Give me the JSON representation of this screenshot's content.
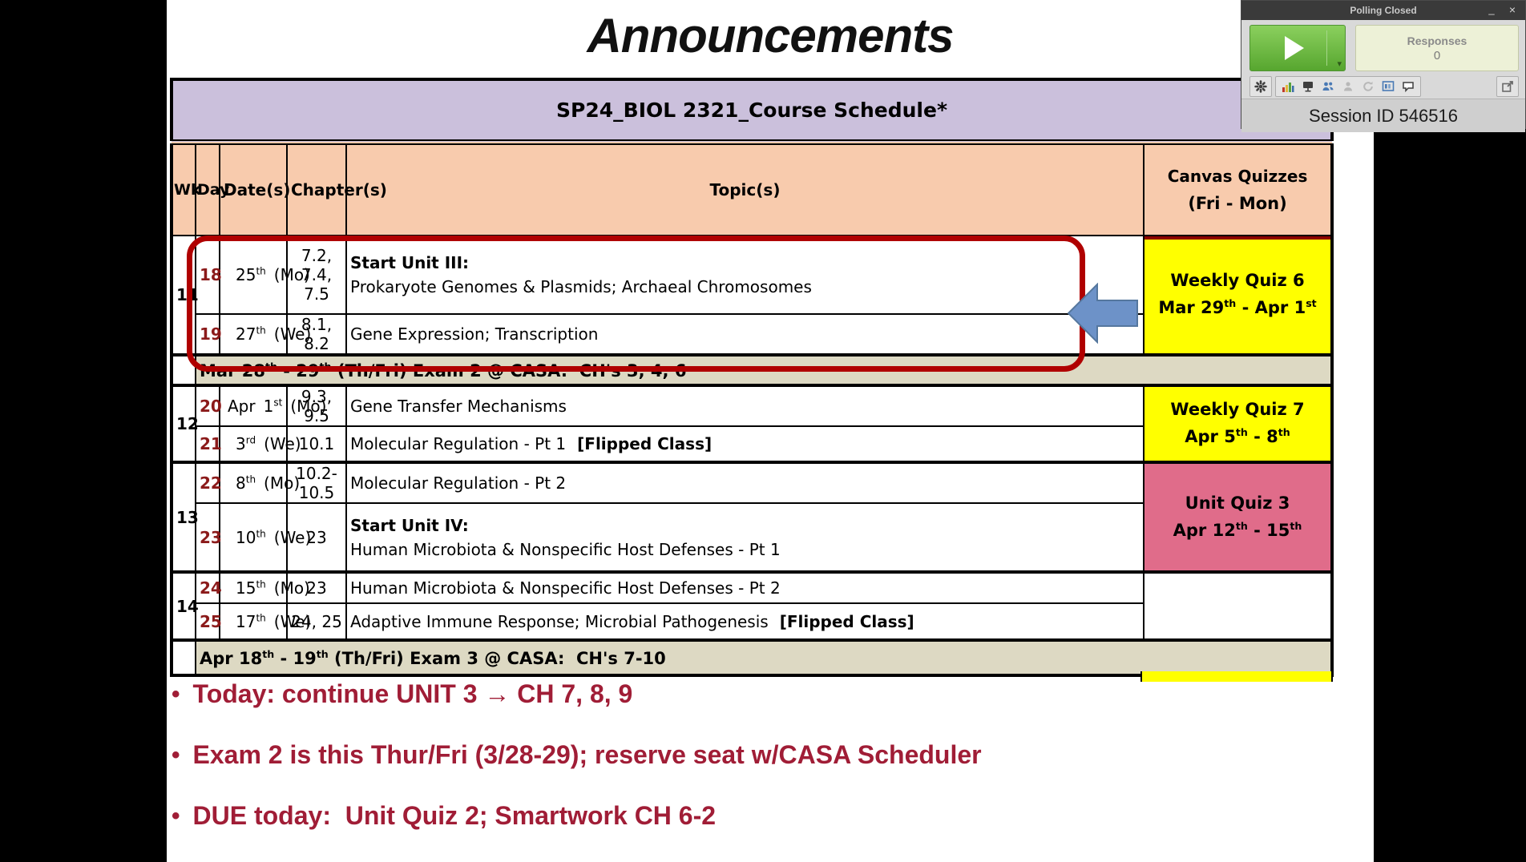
{
  "slide": {
    "title": "Announcements",
    "bullets": [
      "Today: continue UNIT 3 → CH 7, 8, 9",
      "Exam 2 is this Thur/Fri (3/28-29); reserve seat w/CASA Scheduler",
      "DUE today:  Unit Quiz 2; Smartwork CH 6-2"
    ]
  },
  "schedule": {
    "title": "SP24_BIOL 2321_Course Schedule*",
    "headers": {
      "wk": "Wk",
      "day": "Day",
      "dates": "Date(s)",
      "chapters": "Chapter(s)",
      "topics": "Topic(s)",
      "quiz1": "Canvas Quizzes",
      "quiz2": "(Fri - Mon)"
    },
    "weeks": [
      "11",
      "12",
      "13",
      "14"
    ],
    "days": [
      {
        "day": "18",
        "month": "",
        "date": "25th",
        "dow": "(Mo)",
        "chapters": "7.2, 7.4, 7.5",
        "topic_head": "Start Unit III:",
        "topic": "Prokaryote Genomes & Plasmids; Archaeal Chromosomes"
      },
      {
        "day": "19",
        "month": "",
        "date": "27th",
        "dow": "(We)",
        "chapters": "8.1, 8.2",
        "topic": "Gene Expression; Transcription"
      },
      {
        "day": "20",
        "month": "Apr",
        "date": "1st",
        "dow": "(Mo)",
        "chapters": "9.3, 9.5",
        "topic": "Gene Transfer Mechanisms"
      },
      {
        "day": "21",
        "month": "",
        "date": "3rd",
        "dow": "(We)",
        "chapters": "10.1",
        "topic": "Molecular Regulation - Pt 1",
        "topic_tail": "[Flipped Class]"
      },
      {
        "day": "22",
        "month": "",
        "date": "8th",
        "dow": "(Mo)",
        "chapters": "10.2-10.5",
        "topic": "Molecular Regulation - Pt 2"
      },
      {
        "day": "23",
        "month": "",
        "date": "10th",
        "dow": "(We)",
        "chapters": "23",
        "topic_head": "Start Unit IV:",
        "topic": "Human Microbiota & Nonspecific Host Defenses - Pt 1"
      },
      {
        "day": "24",
        "month": "",
        "date": "15th",
        "dow": "(Mo)",
        "chapters": "23",
        "topic": "Human Microbiota & Nonspecific Host Defenses - Pt 2"
      },
      {
        "day": "25",
        "month": "",
        "date": "17th",
        "dow": "(We)",
        "chapters": "24, 25",
        "topic": "Adaptive Immune Response; Microbial Pathogenesis",
        "topic_tail": "[Flipped Class]"
      }
    ],
    "exams": [
      "Mar 28th - 29th (Th/Fri) Exam 2 @ CASA:  CH's 3, 4, 6",
      "Apr 18th - 19th (Th/Fri) Exam 3 @ CASA:  CH's 7-10"
    ],
    "quizzes": [
      {
        "line1": "Weekly Quiz 6",
        "line2": "Mar 29th - Apr 1st"
      },
      {
        "line1": "Weekly Quiz 7",
        "line2": "Apr 5th - 8th"
      },
      {
        "line1": "Unit Quiz 3",
        "line2": "Apr 12th - 15th"
      }
    ]
  },
  "polling": {
    "title": "Polling Closed",
    "minimize_glyph": "_",
    "close_glyph": "×",
    "responses_label": "Responses",
    "responses_count": "0",
    "session_label": "Session ID 546516",
    "toolbar_icons": [
      "gear-icon",
      "bar-chart-icon",
      "presentation-screen-icon",
      "participants-icon",
      "user-disabled-icon",
      "refresh-disabled-icon",
      "message-window-icon",
      "chat-bubble-icon",
      "popout-icon"
    ]
  },
  "colors": {
    "table_title_bg": "#CBC0DC",
    "header_bg": "#F8CBAD",
    "quiz_yellow": "#FFFF00",
    "quiz_pink": "#E06C8A",
    "exam_band": "#DDD9C3",
    "highlight_red": "#B00000",
    "arrow_blue": "#6D92C8",
    "bullet_maroon": "#A01D36",
    "day_number_red": "#8B1A1A",
    "play_green": "#6CBB3C"
  }
}
